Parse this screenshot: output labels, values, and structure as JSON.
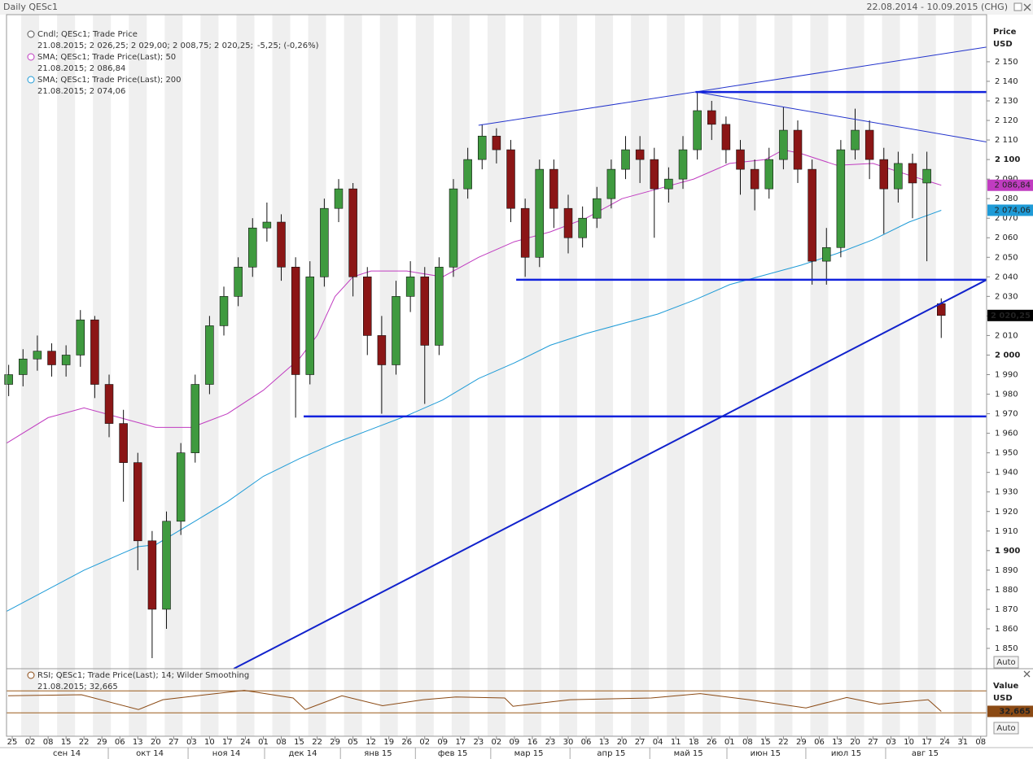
{
  "header": {
    "title": "Daily QESc1",
    "range": "22.08.2014 - 10.09.2015 (CHG)"
  },
  "chart_data": [
    {
      "type": "candlestick",
      "x": [
        -0.2,
        0.6,
        1.4,
        2.2,
        3,
        3.8,
        4.6,
        5.4,
        6.2,
        7,
        7.8,
        8.6,
        9.4,
        10.2,
        11,
        11.8,
        12.6,
        13.4,
        14.2,
        15,
        15.8,
        16.6,
        17.4,
        18.2,
        19,
        19.8,
        20.6,
        21.4,
        22.2,
        23,
        23.8,
        24.6,
        25.4,
        26.2,
        27,
        27.8,
        28.6,
        29.4,
        30.2,
        31,
        31.8,
        32.6,
        33.4,
        34.2,
        35,
        35.8,
        36.6,
        37.4,
        38.2,
        39,
        39.8,
        40.6,
        41.4,
        42.2,
        43,
        43.8,
        44.6,
        45.4,
        46.2,
        47,
        47.8,
        48.6,
        49.4,
        50.2,
        51,
        51.8
      ],
      "open": [
        1985,
        1990,
        1998,
        2002,
        1995,
        2000,
        2018,
        1985,
        1965,
        1945,
        1905,
        1870,
        1915,
        1950,
        1985,
        2015,
        2030,
        2045,
        2065,
        2068,
        2045,
        1990,
        2040,
        2075,
        2085,
        2040,
        2010,
        1995,
        2030,
        2040,
        2005,
        2045,
        2085,
        2100,
        2112,
        2105,
        2075,
        2050,
        2095,
        2075,
        2060,
        2070,
        2080,
        2095,
        2105,
        2100,
        2085,
        2090,
        2105,
        2125,
        2118,
        2105,
        2095,
        2085,
        2100,
        2115,
        2095,
        2048,
        2055,
        2105,
        2115,
        2100,
        2085,
        2098,
        2088,
        2026.25
      ],
      "high": [
        1995,
        2003,
        2010,
        2006,
        2005,
        2023,
        2020,
        1990,
        1972,
        1950,
        1910,
        1920,
        1955,
        1990,
        2020,
        2035,
        2050,
        2070,
        2078,
        2072,
        2050,
        2048,
        2080,
        2090,
        2088,
        2045,
        2020,
        2038,
        2048,
        2045,
        2050,
        2090,
        2106,
        2118,
        2116,
        2110,
        2080,
        2100,
        2100,
        2082,
        2076,
        2086,
        2100,
        2112,
        2112,
        2106,
        2096,
        2112,
        2134,
        2130,
        2122,
        2110,
        2100,
        2106,
        2127,
        2120,
        2100,
        2065,
        2110,
        2126,
        2120,
        2106,
        2104,
        2103,
        2104,
        2029
      ],
      "low": [
        1979,
        1984,
        1992,
        1989,
        1989,
        1994,
        1978,
        1958,
        1925,
        1890,
        1845,
        1860,
        1908,
        1945,
        1980,
        2010,
        2025,
        2040,
        2058,
        2038,
        1968,
        1985,
        2035,
        2068,
        2030,
        2000,
        1970,
        1990,
        2022,
        1975,
        2000,
        2040,
        2080,
        2095,
        2098,
        2068,
        2040,
        2045,
        2065,
        2052,
        2055,
        2065,
        2075,
        2090,
        2088,
        2060,
        2078,
        2085,
        2100,
        2110,
        2098,
        2082,
        2074,
        2080,
        2095,
        2088,
        2036,
        2036,
        2050,
        2100,
        2090,
        2062,
        2078,
        2070,
        2048,
        2008.75
      ],
      "close": [
        1990,
        1998,
        2002,
        1995,
        2000,
        2018,
        1985,
        1965,
        1945,
        1905,
        1870,
        1915,
        1950,
        1985,
        2015,
        2030,
        2045,
        2065,
        2068,
        2045,
        1990,
        2040,
        2075,
        2085,
        2040,
        2010,
        1995,
        2030,
        2040,
        2005,
        2045,
        2085,
        2100,
        2112,
        2105,
        2075,
        2050,
        2095,
        2075,
        2060,
        2070,
        2080,
        2095,
        2105,
        2100,
        2085,
        2090,
        2105,
        2125,
        2118,
        2105,
        2095,
        2085,
        2100,
        2115,
        2095,
        2048,
        2055,
        2105,
        2115,
        2100,
        2085,
        2098,
        2088,
        2095,
        2020.25
      ],
      "up_color": "#3f9a3f",
      "down_color": "#8b1616",
      "last_label": "2 020,25",
      "legend": {
        "name": "Cndl; QESc1; Trade Price",
        "detail": "21.08.2015; 2 026,25; 2 029,00; 2 008,75; 2 020,25;",
        "change": "-5,25; (-0,26%)",
        "change_color": "#cc0000"
      },
      "overlays": [
        {
          "name": "SMA; QESc1; Trade Price(Last);  50",
          "color": "#c03cc0",
          "detail": "21.08.2015; 2 086,84",
          "last_label": "2 086,84",
          "x": [
            -0.3,
            2,
            4,
            6,
            8,
            10,
            12,
            14,
            16,
            17,
            18,
            19,
            20,
            22,
            24,
            26,
            28,
            30,
            32,
            34,
            36,
            38,
            40,
            42,
            43,
            44,
            46,
            48,
            50,
            51.8
          ],
          "values": [
            1955,
            1968,
            1973,
            1968,
            1963,
            1963,
            1970,
            1982,
            1998,
            2010,
            2030,
            2040,
            2043,
            2043,
            2040,
            2050,
            2058,
            2063,
            2070,
            2080,
            2085,
            2090,
            2098,
            2100,
            2105,
            2103,
            2097,
            2098,
            2092,
            2086.84
          ]
        },
        {
          "name": "SMA; QESc1; Trade Price(Last);  200",
          "color": "#1e9bd7",
          "detail": "21.08.2015; 2 074,06",
          "last_label": "2 074,06",
          "x": [
            -0.3,
            4,
            6,
            7,
            8,
            10,
            12,
            14,
            16,
            18,
            20,
            22,
            24,
            26,
            28,
            30,
            32,
            34,
            36,
            38,
            40,
            42,
            44,
            46,
            48,
            50,
            51.8
          ],
          "values": [
            1869,
            1890,
            1898,
            1902,
            1903,
            1914,
            1925,
            1938,
            1947,
            1955,
            1962,
            1969,
            1977,
            1988,
            1996,
            2005,
            2011,
            2016,
            2021,
            2028,
            2036,
            2041,
            2046,
            2052,
            2059,
            2068,
            2074.06
          ]
        }
      ],
      "trendlines": [
        {
          "color": "#2233cc",
          "width": 1,
          "x": [
            26,
            54.33
          ],
          "y": [
            2117.5,
            2157.5
          ]
        },
        {
          "color": "#2233cc",
          "width": 1,
          "x": [
            38.1,
            54.33
          ],
          "y": [
            2134.6,
            2109
          ]
        },
        {
          "color": "#1122dd",
          "width": 2.5,
          "x": [
            38.1,
            54.33
          ],
          "y": [
            2134.5,
            2134.5
          ]
        },
        {
          "color": "#1122dd",
          "width": 2.5,
          "x": [
            28.1,
            54.33
          ],
          "y": [
            2038.5,
            2038.5
          ]
        },
        {
          "color": "#1122dd",
          "width": 2.5,
          "x": [
            16.25,
            54.33
          ],
          "y": [
            1968.6,
            1968.6
          ]
        },
        {
          "color": "#1122cc",
          "width": 2,
          "x": [
            12.35,
            54.33
          ],
          "y": [
            1839.6,
            2038.5
          ]
        }
      ],
      "ylim": [
        1839.6,
        2174.1
      ],
      "yticks": [
        {
          "value": 1850,
          "label": "1 850"
        },
        {
          "value": 1860,
          "label": "1 860"
        },
        {
          "value": 1870,
          "label": "1 870"
        },
        {
          "value": 1880,
          "label": "1 880"
        },
        {
          "value": 1890,
          "label": "1 890"
        },
        {
          "value": 1900,
          "label": "1 900"
        },
        {
          "value": 1910,
          "label": "1 910"
        },
        {
          "value": 1920,
          "label": "1 920"
        },
        {
          "value": 1930,
          "label": "1 930"
        },
        {
          "value": 1940,
          "label": "1 940"
        },
        {
          "value": 1950,
          "label": "1 950"
        },
        {
          "value": 1960,
          "label": "1 960"
        },
        {
          "value": 1970,
          "label": "1 970"
        },
        {
          "value": 1980,
          "label": "1 980"
        },
        {
          "value": 1990,
          "label": "1 990"
        },
        {
          "value": 2000,
          "label": "2 000"
        },
        {
          "value": 2010,
          "label": "2 010"
        },
        {
          "value": 2020,
          "label": "2 020"
        },
        {
          "value": 2030,
          "label": "2 030"
        },
        {
          "value": 2040,
          "label": "2 040"
        },
        {
          "value": 2050,
          "label": "2 050"
        },
        {
          "value": 2060,
          "label": "2 060"
        },
        {
          "value": 2070,
          "label": "2 070"
        },
        {
          "value": 2080,
          "label": "2 080"
        },
        {
          "value": 2090,
          "label": "2 090"
        },
        {
          "value": 2100,
          "label": "2 100"
        },
        {
          "value": 2110,
          "label": "2 110"
        },
        {
          "value": 2120,
          "label": "2 120"
        },
        {
          "value": 2130,
          "label": "2 130"
        },
        {
          "value": 2140,
          "label": "2 140"
        },
        {
          "value": 2150,
          "label": "2 150"
        }
      ],
      "xlim": [
        -0.32,
        54.33
      ],
      "xticks": [
        {
          "value": 0,
          "label": "25"
        },
        {
          "value": 1,
          "label": "02"
        },
        {
          "value": 2,
          "label": "08"
        },
        {
          "value": 3,
          "label": "15"
        },
        {
          "value": 4,
          "label": "22"
        },
        {
          "value": 5,
          "label": "29"
        },
        {
          "value": 6,
          "label": "06"
        },
        {
          "value": 7,
          "label": "13"
        },
        {
          "value": 8,
          "label": "20"
        },
        {
          "value": 9,
          "label": "27"
        },
        {
          "value": 10,
          "label": "03"
        },
        {
          "value": 11,
          "label": "10"
        },
        {
          "value": 12,
          "label": "17"
        },
        {
          "value": 13,
          "label": "24"
        },
        {
          "value": 14,
          "label": "01"
        },
        {
          "value": 15,
          "label": "08"
        },
        {
          "value": 16,
          "label": "15"
        },
        {
          "value": 17,
          "label": "22"
        },
        {
          "value": 18,
          "label": "29"
        },
        {
          "value": 19,
          "label": "05"
        },
        {
          "value": 20,
          "label": "12"
        },
        {
          "value": 21,
          "label": "19"
        },
        {
          "value": 22,
          "label": "26"
        },
        {
          "value": 23,
          "label": "02"
        },
        {
          "value": 24,
          "label": "09"
        },
        {
          "value": 25,
          "label": "17"
        },
        {
          "value": 26,
          "label": "23"
        },
        {
          "value": 27,
          "label": "02"
        },
        {
          "value": 28,
          "label": "09"
        },
        {
          "value": 29,
          "label": "16"
        },
        {
          "value": 30,
          "label": "23"
        },
        {
          "value": 31,
          "label": "30"
        },
        {
          "value": 32,
          "label": "06"
        },
        {
          "value": 33,
          "label": "13"
        },
        {
          "value": 34,
          "label": "20"
        },
        {
          "value": 35,
          "label": "27"
        },
        {
          "value": 36,
          "label": "04"
        },
        {
          "value": 37,
          "label": "11"
        },
        {
          "value": 38,
          "label": "18"
        },
        {
          "value": 39,
          "label": "26"
        },
        {
          "value": 40,
          "label": "01"
        },
        {
          "value": 41,
          "label": "08"
        },
        {
          "value": 42,
          "label": "15"
        },
        {
          "value": 43,
          "label": "22"
        },
        {
          "value": 44,
          "label": "29"
        },
        {
          "value": 45,
          "label": "06"
        },
        {
          "value": 46,
          "label": "13"
        },
        {
          "value": 47,
          "label": "20"
        },
        {
          "value": 48,
          "label": "27"
        },
        {
          "value": 49,
          "label": "03"
        },
        {
          "value": 50,
          "label": "10"
        },
        {
          "value": 51,
          "label": "17"
        },
        {
          "value": 52,
          "label": "24"
        },
        {
          "value": 53,
          "label": "31"
        },
        {
          "value": 54,
          "label": "08"
        }
      ],
      "month_ticks": [
        {
          "value": 3.04,
          "label": "сен 14"
        },
        {
          "value": 7.67,
          "label": "окт 14"
        },
        {
          "value": 11.94,
          "label": "ноя 14"
        },
        {
          "value": 16.2,
          "label": "дек 14"
        },
        {
          "value": 20.4,
          "label": "янв 15"
        },
        {
          "value": 24.56,
          "label": "фев 15"
        },
        {
          "value": 28.8,
          "label": "мар 15"
        },
        {
          "value": 33.4,
          "label": "апр 15"
        },
        {
          "value": 37.7,
          "label": "май 15"
        },
        {
          "value": 42,
          "label": "июн 15"
        },
        {
          "value": 46.5,
          "label": "июл 15"
        },
        {
          "value": 50.9,
          "label": "авг 15"
        }
      ],
      "axis_title": [
        "Price",
        "USD"
      ],
      "auto": "Auto"
    },
    {
      "type": "line",
      "series": [
        {
          "name": "RSI; QESc1; Trade Price(Last);  14; Wilder Smoothing",
          "color": "#8b4a14",
          "detail": "21.08.2015; 32,665",
          "last_label": "32,665",
          "x": [
            -0.23,
            3.86,
            7.04,
            8.4,
            12.94,
            15.66,
            16.34,
            18.38,
            20.65,
            22.92,
            24.74,
            27.46,
            27.92,
            31.1,
            35.63,
            38.36,
            41.08,
            44.26,
            46.53,
            48.34,
            51.07,
            51.8
          ],
          "values": [
            61,
            63,
            36,
            54,
            71,
            57,
            36,
            61,
            43,
            54,
            59,
            57,
            42,
            54,
            57,
            65,
            54,
            39,
            58,
            46,
            54,
            32.665
          ]
        }
      ],
      "levels": [
        70,
        30
      ],
      "level_color": "#9a5a1a",
      "ylim": [
        -12.6,
        110.4
      ],
      "xlim": [
        -0.32,
        54.33
      ],
      "axis_title": [
        "Value",
        "USD"
      ],
      "auto": "Auto"
    }
  ]
}
